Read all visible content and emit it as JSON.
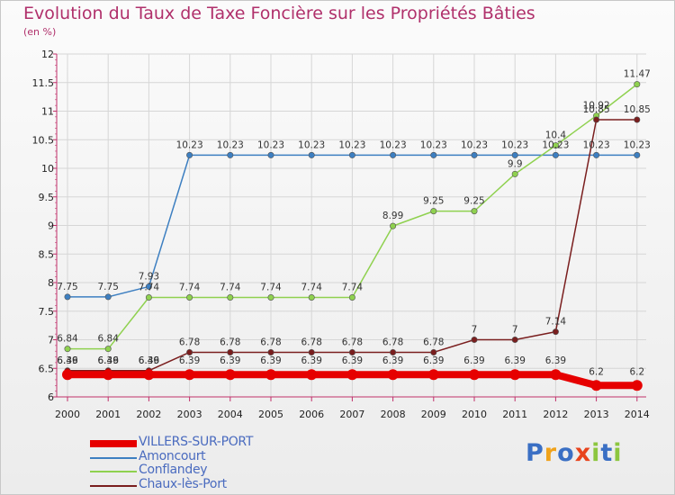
{
  "chart_data": {
    "type": "line",
    "title": "Evolution du Taux de Taxe Foncière sur les Propriétés Bâties",
    "ylabel": "(en %)",
    "xlabel": "",
    "ylim": [
      6,
      12
    ],
    "yticks": [
      "6",
      "6.5",
      "7",
      "7.5",
      "8",
      "8.5",
      "9",
      "9.5",
      "10",
      "10.5",
      "11",
      "11.5",
      "12"
    ],
    "categories": [
      "2000",
      "2001",
      "2002",
      "2003",
      "2004",
      "2005",
      "2006",
      "2007",
      "2008",
      "2009",
      "2010",
      "2011",
      "2012",
      "2013",
      "2014"
    ],
    "series": [
      {
        "name": "VILLERS-SUR-PORT",
        "color": "#e60000",
        "values": [
          6.39,
          6.39,
          6.39,
          6.39,
          6.39,
          6.39,
          6.39,
          6.39,
          6.39,
          6.39,
          6.39,
          6.39,
          6.39,
          6.2,
          6.2
        ],
        "labels": [
          "6.39",
          "6.39",
          "6.39",
          "6.39",
          "6.39",
          "6.39",
          "6.39",
          "6.39",
          "6.39",
          "6.39",
          "6.39",
          "6.39",
          "6.39",
          "6.2",
          "6.2"
        ]
      },
      {
        "name": "Amoncourt",
        "color": "#3d7fc1",
        "values": [
          7.75,
          7.75,
          7.93,
          10.23,
          10.23,
          10.23,
          10.23,
          10.23,
          10.23,
          10.23,
          10.23,
          10.23,
          10.23,
          10.23,
          10.23
        ],
        "labels": [
          "7.75",
          "7.75",
          "7.93",
          "10.23",
          "10.23",
          "10.23",
          "10.23",
          "10.23",
          "10.23",
          "10.23",
          "10.23",
          "10.23",
          "10.23",
          "10.23",
          "10.23"
        ]
      },
      {
        "name": "Conflandey",
        "color": "#8fd14f",
        "values": [
          6.84,
          6.84,
          7.74,
          7.74,
          7.74,
          7.74,
          7.74,
          7.74,
          8.99,
          9.25,
          9.25,
          9.9,
          10.4,
          10.92,
          11.47
        ],
        "labels": [
          "6.84",
          "6.84",
          "7.74",
          "7.74",
          "7.74",
          "7.74",
          "7.74",
          "7.74",
          "8.99",
          "9.25",
          "9.25",
          "9.9",
          "10.4",
          "10.92",
          "11.47"
        ]
      },
      {
        "name": "Chaux-lès-Port",
        "color": "#7a1e1e",
        "values": [
          6.46,
          6.46,
          6.46,
          6.78,
          6.78,
          6.78,
          6.78,
          6.78,
          6.78,
          6.78,
          7,
          7,
          7.14,
          10.85,
          10.85
        ],
        "labels": [
          "6.46",
          "6.46",
          "6.46",
          "6.78",
          "6.78",
          "6.78",
          "6.78",
          "6.78",
          "6.78",
          "6.78",
          "7",
          "7",
          "7.14",
          "10.85",
          "10.85"
        ]
      }
    ]
  },
  "logo": {
    "text": "Proxiti"
  }
}
